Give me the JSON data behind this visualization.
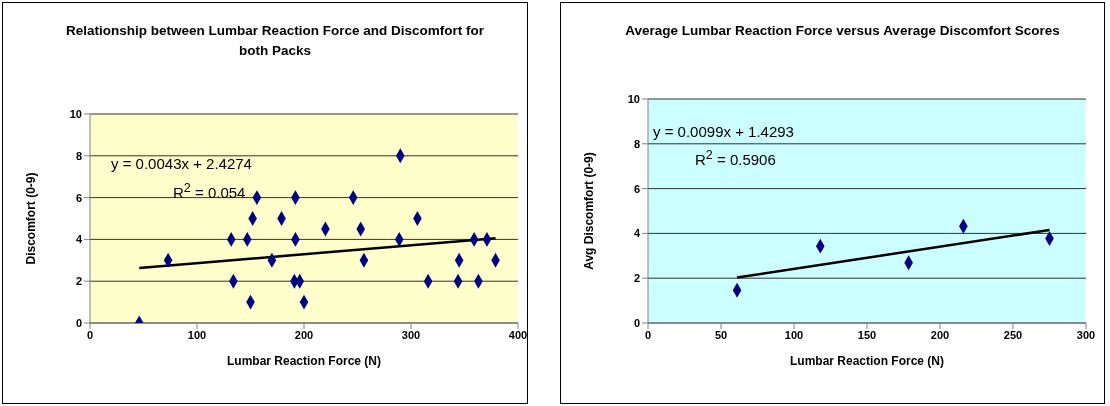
{
  "chart_data": [
    {
      "type": "scatter",
      "title": "Relationship between Lumbar Reaction Force and Discomfort for both Packs",
      "xlabel": "Lumbar Reaction Force (N)",
      "ylabel": "Discomfort (0-9)",
      "xlim": [
        0,
        400
      ],
      "xticks": [
        0,
        100,
        200,
        300,
        400
      ],
      "ylim": [
        0,
        10
      ],
      "yticks": [
        0,
        2,
        4,
        6,
        8,
        10
      ],
      "grid": "y",
      "marker": "diamond",
      "series": [
        {
          "color": "#000080",
          "x": [
            46,
            73,
            132,
            134,
            147,
            150,
            152,
            156,
            170,
            179,
            192,
            192,
            191,
            196,
            200,
            220,
            246,
            253,
            256,
            290,
            289,
            306,
            316,
            345,
            344,
            359,
            363,
            371,
            379
          ],
          "values": [
            0,
            3,
            4,
            2,
            4,
            1,
            5,
            6,
            3,
            5,
            6,
            4,
            2,
            2,
            1,
            4.5,
            6,
            4.5,
            3,
            8,
            4,
            5,
            2,
            3,
            2,
            4,
            2,
            4,
            3
          ]
        },
        {
          "type": "line",
          "color": "#000000",
          "marker": "none",
          "x": [
            46,
            379
          ],
          "values": [
            2.63,
            4.06
          ]
        }
      ],
      "annotations": [
        "y = 0.0043x + 2.4274",
        "R$^{2}$ = 0.054"
      ]
    },
    {
      "type": "scatter",
      "title": "Average Lumbar Reaction Force versus Average Discomfort Scores",
      "xlabel": "Lumbar Reaction Force (N)",
      "ylabel": "Avg Discomfort (0-9)",
      "xlim": [
        0,
        300
      ],
      "xticks": [
        0,
        50,
        100,
        150,
        200,
        250,
        300
      ],
      "ylim": [
        0,
        10
      ],
      "yticks": [
        0,
        2,
        4,
        6,
        8,
        10
      ],
      "grid": "y",
      "marker": "diamond",
      "series": [
        {
          "color": "#000080",
          "x": [
            61,
            118,
            178.5,
            216,
            275
          ],
          "values": [
            1.46,
            3.43,
            2.69,
            4.32,
            3.77
          ]
        },
        {
          "type": "line",
          "color": "#000000",
          "marker": "none",
          "x": [
            61,
            275
          ],
          "values": [
            2.03,
            4.15
          ]
        }
      ],
      "annotations": [
        "y = 0.0099x + 1.4293",
        "R$^{2}$ = 0.5906"
      ]
    }
  ]
}
